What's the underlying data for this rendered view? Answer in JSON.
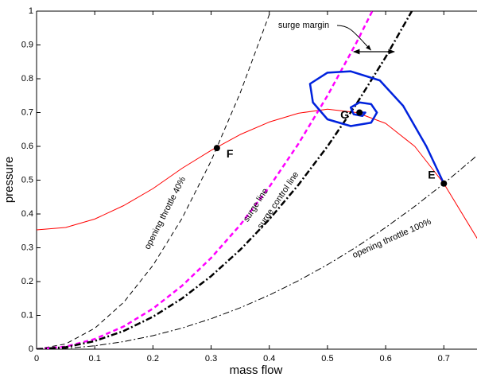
{
  "chart_data": {
    "type": "line",
    "xlabel": "mass flow",
    "ylabel": "pressure",
    "xlim": [
      0,
      0.757
    ],
    "ylim": [
      0,
      1
    ],
    "xticks": [
      0,
      0.1,
      0.2,
      0.3,
      0.4,
      0.5,
      0.6,
      0.7
    ],
    "yticks": [
      0,
      0.1,
      0.2,
      0.3,
      0.4,
      0.5,
      0.6,
      0.7,
      0.8,
      0.9,
      1
    ],
    "series": [
      {
        "color": "#ff0000",
        "dash": "solid",
        "width": 1,
        "x": [
          0,
          0.05,
          0.1,
          0.15,
          0.2,
          0.25,
          0.3,
          0.35,
          0.4,
          0.45,
          0.5,
          0.55,
          0.6,
          0.65,
          0.7,
          0.76
        ],
        "values": [
          0.353,
          0.36,
          0.385,
          0.425,
          0.475,
          0.535,
          0.588,
          0.635,
          0.672,
          0.698,
          0.71,
          0.7,
          0.668,
          0.6,
          0.49,
          0.32
        ]
      },
      {
        "name": "opening throttle 40%",
        "color": "#000000",
        "dash": "dashed",
        "width": 1,
        "x": [
          0,
          0.05,
          0.1,
          0.15,
          0.2,
          0.25,
          0.3,
          0.35,
          0.4,
          0.402
        ],
        "values": [
          0,
          0.0155,
          0.0619,
          0.139,
          0.248,
          0.387,
          0.557,
          0.758,
          0.99,
          1
        ]
      },
      {
        "name": "surge line",
        "color": "#ff00ff",
        "dash": "dashed",
        "width": 2.5,
        "x": [
          0,
          0.05,
          0.1,
          0.15,
          0.2,
          0.25,
          0.3,
          0.35,
          0.4,
          0.45,
          0.5,
          0.55,
          0.577
        ],
        "values": [
          0,
          0.0075,
          0.03,
          0.0675,
          0.12,
          0.1875,
          0.27,
          0.3675,
          0.48,
          0.6075,
          0.75,
          0.9075,
          1
        ]
      },
      {
        "name": "surge control line",
        "color": "#000000",
        "dash": "dashdot",
        "width": 2.5,
        "x": [
          0,
          0.05,
          0.1,
          0.15,
          0.2,
          0.25,
          0.3,
          0.35,
          0.4,
          0.45,
          0.5,
          0.55,
          0.6,
          0.645
        ],
        "values": [
          0,
          0.006,
          0.024,
          0.054,
          0.096,
          0.15,
          0.216,
          0.294,
          0.384,
          0.486,
          0.6,
          0.726,
          0.864,
          1
        ]
      },
      {
        "name": "opening throttle 100%",
        "color": "#000000",
        "dash": "dashdot",
        "width": 1,
        "x": [
          0,
          0.05,
          0.1,
          0.15,
          0.2,
          0.25,
          0.3,
          0.35,
          0.4,
          0.45,
          0.5,
          0.55,
          0.6,
          0.65,
          0.7,
          0.75,
          0.76
        ],
        "values": [
          0,
          0.0025,
          0.01,
          0.0225,
          0.04,
          0.0625,
          0.09,
          0.1225,
          0.16,
          0.2025,
          0.25,
          0.3025,
          0.36,
          0.4225,
          0.49,
          0.5625,
          0.5776
        ]
      },
      {
        "color": "#0022dd",
        "dash": "solid",
        "width": 2.5,
        "x": [
          0.7,
          0.67,
          0.63,
          0.59,
          0.54,
          0.5,
          0.47,
          0.475,
          0.5,
          0.54,
          0.575,
          0.585,
          0.575,
          0.555,
          0.54,
          0.545,
          0.56,
          0.565,
          0.555
        ],
        "values": [
          0.49,
          0.6,
          0.72,
          0.795,
          0.822,
          0.818,
          0.785,
          0.73,
          0.68,
          0.66,
          0.67,
          0.7,
          0.725,
          0.73,
          0.715,
          0.695,
          0.69,
          0.7,
          0.7
        ]
      }
    ],
    "points": [
      {
        "label": "F",
        "x": 0.31,
        "y": 0.595
      },
      {
        "label": "E",
        "x": 0.7,
        "y": 0.49
      },
      {
        "label": "G",
        "x": 0.555,
        "y": 0.7
      }
    ],
    "surge_margin": {
      "label": "surge margin",
      "y": 0.88,
      "x": [
        0.545,
        0.615
      ]
    }
  }
}
